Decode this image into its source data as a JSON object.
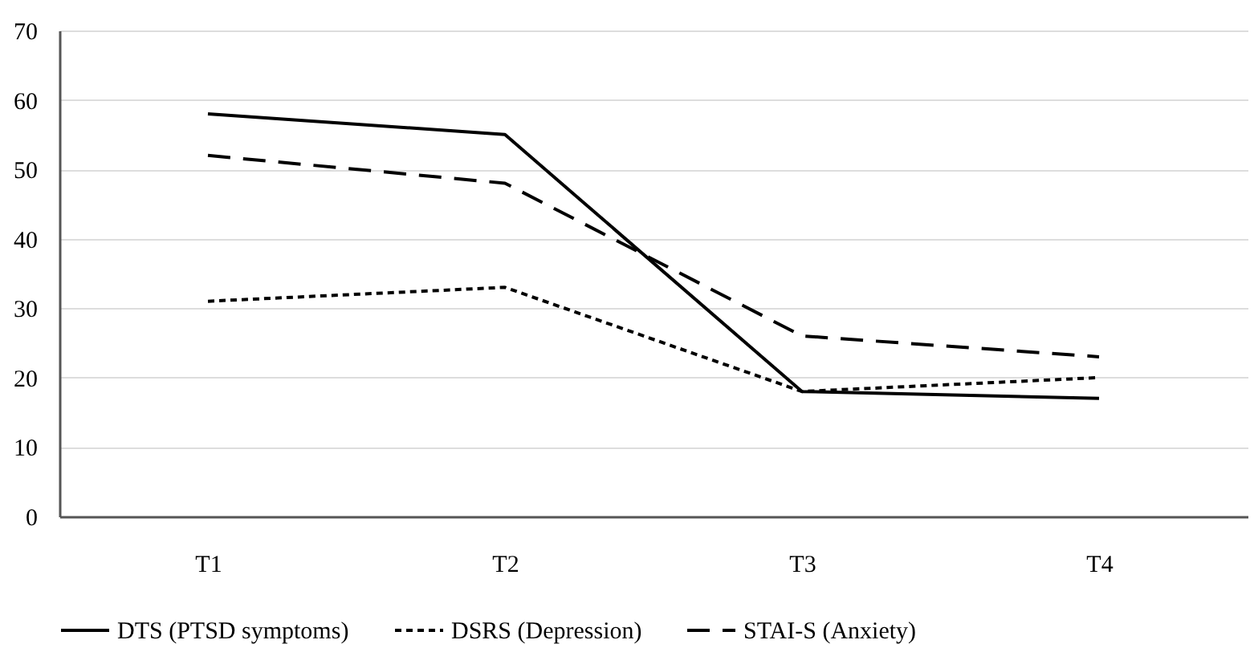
{
  "chart_data": {
    "type": "line",
    "categories": [
      "T1",
      "T2",
      "T3",
      "T4"
    ],
    "series": [
      {
        "name": "DTS (PTSD symptoms)",
        "color": "#000000",
        "line_style": "solid",
        "values": [
          58,
          55,
          18,
          17
        ]
      },
      {
        "name": "DSRS (Depression)",
        "color": "#000000",
        "line_style": "dotted",
        "values": [
          31,
          33,
          18,
          20
        ]
      },
      {
        "name": "STAI-S (Anxiety)",
        "color": "#000000",
        "line_style": "dashed",
        "values": [
          52,
          48,
          26,
          23
        ]
      }
    ],
    "ylim": [
      0,
      70
    ],
    "yticks": [
      0,
      10,
      20,
      30,
      40,
      50,
      60,
      70
    ],
    "grid": "y",
    "legend": "bottom",
    "marker": "none"
  }
}
